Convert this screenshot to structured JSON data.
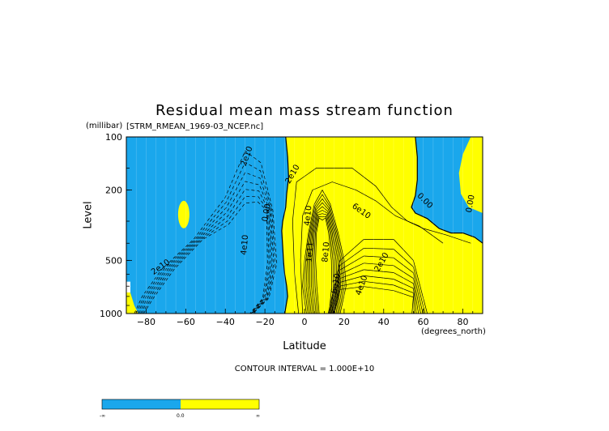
{
  "chart_data": {
    "type": "heatmap",
    "title": "Residual mean mass stream function",
    "dataset": "[STRM_RMEAN_1969-03_NCEP.nc]",
    "xlabel": "Latitude",
    "xunit": "(degrees_north)",
    "ylabel": "Level",
    "yunit": "(millibar)",
    "xlim": [
      -90,
      90
    ],
    "ylim": [
      1000,
      100
    ],
    "yscale": "log",
    "xticks": [
      -80,
      -60,
      -40,
      -20,
      0,
      20,
      40,
      60,
      80
    ],
    "yticks": [
      100,
      200,
      500,
      1000
    ],
    "contour_interval_text": "CONTOUR INTERVAL = 1.000E+10",
    "contour_labels": [
      "2e10",
      "2e10",
      "0.00",
      "4e10",
      "2e10",
      "4e10",
      "6e10",
      "1e11",
      "8e10",
      "6e10",
      "4e10",
      "2e10",
      "0.00",
      "0.00"
    ],
    "colorbar": {
      "labels": [
        "-∞",
        "0.0",
        "∞"
      ],
      "colors": [
        "#1aa7ec",
        "#ffff00"
      ]
    },
    "colors": {
      "negative": "#1aa7ec",
      "positive": "#ffff00"
    }
  }
}
